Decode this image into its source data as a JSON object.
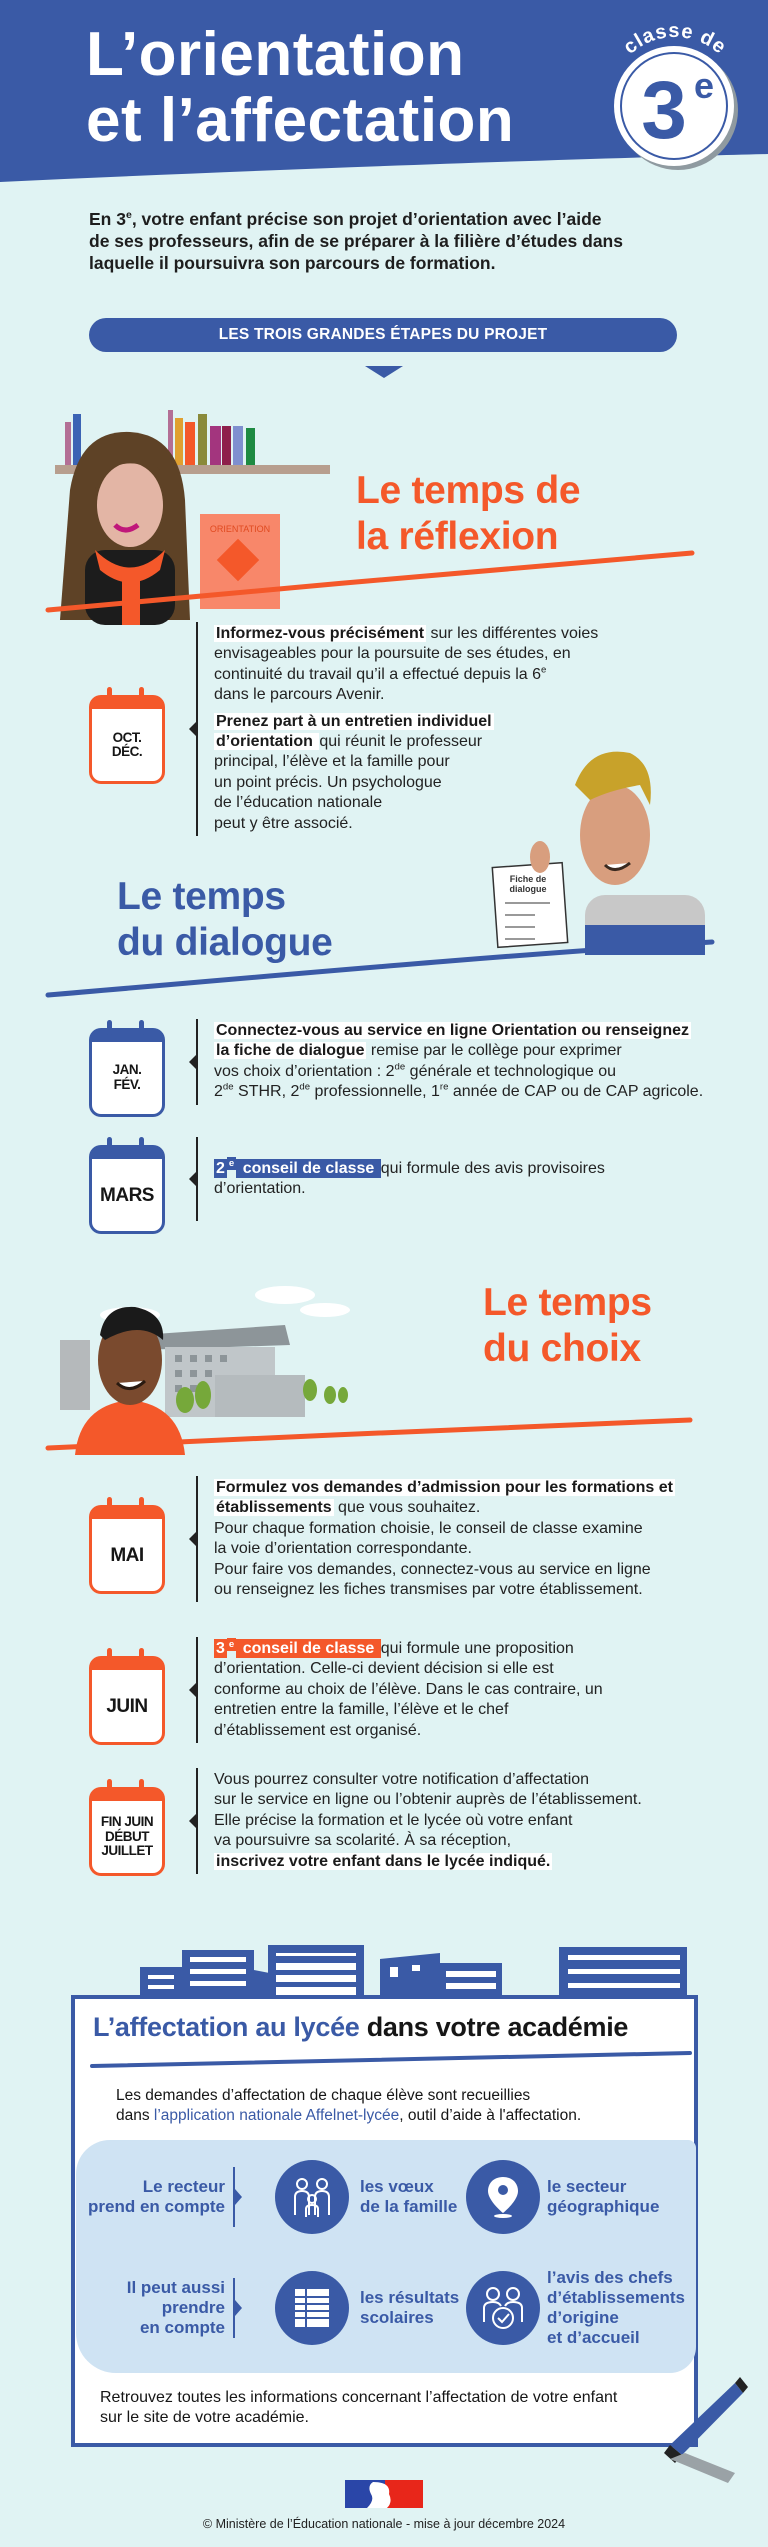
{
  "header": {
    "title_line1": "L’orientation",
    "title_line2": "et l’affectation",
    "badge_top": "classe de",
    "badge_number": "3",
    "badge_sup": "e"
  },
  "intro": {
    "pre": "En 3",
    "sup": "e",
    "text": ", votre enfant précise son projet d’orientation avec l’aide\nde ses professeurs, afin de se préparer à la filière d’études dans\nlaquelle il poursuivra son parcours de formation."
  },
  "steps_button": "LES TROIS GRANDES ÉTAPES DU PROJET",
  "sections": [
    {
      "title": "Le temps de\nla réflexion",
      "color": "#f4582a",
      "poster_label": "ORIENTATION"
    },
    {
      "title": "Le temps\ndu dialogue",
      "color": "#3a5aa6",
      "sheet_label": "Fiche de\ndialogue"
    },
    {
      "title": "Le temps\ndu choix",
      "color": "#f4582a"
    }
  ],
  "timeline": [
    {
      "date": "OCT.\nDÉC.",
      "color": "#f4582a",
      "paragraphs": [
        [
          {
            "t": "Informez-vous précisément",
            "s": "b"
          },
          {
            "t": " sur les différentes voies\nenvisageables pour la poursuite de ses études, en\ncontinuité du travail qu’il a effectué depuis la 6"
          },
          {
            "t": "e",
            "s": "sup"
          },
          {
            "t": "\ndans le parcours Avenir."
          }
        ],
        [
          {
            "t": "Prenez part à un entretien individuel\nd’orientation ",
            "s": "b"
          },
          {
            "t": " qui réunit le professeur\nprincipal, l’élève et la famille pour\nun point précis. Un psychologue\nde l’éducation nationale\npeut y être associé."
          }
        ]
      ]
    },
    {
      "date": "JAN.\nFÉV.",
      "color": "#3a5aa6",
      "paragraphs": [
        [
          {
            "t": "Connectez-vous au service en ligne Orientation ou renseignez\nla fiche de dialogue",
            "s": "b"
          },
          {
            "t": " remise par le collège pour exprimer\nvos choix d’orientation : 2"
          },
          {
            "t": "de",
            "s": "sup"
          },
          {
            "t": " générale et technologique ou\n2"
          },
          {
            "t": "de",
            "s": "sup"
          },
          {
            "t": " STHR, 2"
          },
          {
            "t": "de",
            "s": "sup"
          },
          {
            "t": " professionnelle, 1"
          },
          {
            "t": "re",
            "s": "sup"
          },
          {
            "t": " année de CAP ou de CAP agricole."
          }
        ]
      ]
    },
    {
      "date": "MARS",
      "color": "#3a5aa6",
      "paragraphs": [
        [
          {
            "t": "2",
            "s": "blue"
          },
          {
            "t": "e",
            "s": "bluesup"
          },
          {
            "t": " conseil de classe ",
            "s": "blue"
          },
          {
            "t": " qui formule des avis provisoires\nd’orientation."
          }
        ]
      ]
    },
    {
      "date": "MAI",
      "color": "#f4582a",
      "paragraphs": [
        [
          {
            "t": "Formulez vos demandes d’admission pour les formations et\nétablissements",
            "s": "b"
          },
          {
            "t": " que vous souhaitez.\nPour chaque formation choisie, le conseil de classe examine\nla voie d’orientation correspondante.\nPour faire vos demandes, connectez-vous au service en ligne\nou renseignez les fiches transmises par votre établissement."
          }
        ]
      ]
    },
    {
      "date": "JUIN",
      "color": "#f4582a",
      "paragraphs": [
        [
          {
            "t": "3",
            "s": "orange"
          },
          {
            "t": "e",
            "s": "orangesup"
          },
          {
            "t": " conseil de classe ",
            "s": "orange"
          },
          {
            "t": " qui formule une proposition\nd’orientation. Celle-ci devient décision si elle est\nconforme au choix de l’élève. Dans le cas contraire, un\nentretien entre la famille, l’élève et le chef\nd’établissement est organisé."
          }
        ]
      ]
    },
    {
      "date": "FIN JUIN\nDÉBUT\nJUILLET",
      "color": "#f4582a",
      "paragraphs": [
        [
          {
            "t": "Vous pourrez consulter votre notification d’affectation\nsur le service en ligne ou l’obtenir auprès de l’établissement.\nElle précise la formation et le lycée où votre enfant\nva poursuivre sa scolarité. À sa réception,\n"
          },
          {
            "t": "inscrivez votre enfant dans le lycée indiqué.",
            "s": "b"
          }
        ]
      ]
    }
  ],
  "affectation": {
    "title_blue": "L’affectation au lycée",
    "title_black": " dans votre académie",
    "desc": [
      {
        "t": "Les demandes d’affectation de chaque élève sont recueillies\ndans "
      },
      {
        "t": "l’application nationale Affelnet-lycée",
        "s": "link"
      },
      {
        "t": ", outil d’aide à l'affectation."
      }
    ],
    "rows": [
      {
        "label": "Le recteur\nprend en compte",
        "items": [
          {
            "icon": "family-icon",
            "text": "les vœux\nde la famille"
          },
          {
            "icon": "location-pin-icon",
            "text": "le secteur\ngéographique"
          }
        ]
      },
      {
        "label": "Il peut aussi\nprendre\nen compte",
        "items": [
          {
            "icon": "table-icon",
            "text": "les résultats\nscolaires"
          },
          {
            "icon": "people-check-icon",
            "text": "l’avis des chefs\nd’établissements\nd’origine\net d’accueil"
          }
        ]
      }
    ],
    "note": "Retrouvez toutes les informations concernant l’affectation de votre enfant\nsur le site de votre académie."
  },
  "footer": {
    "copyright": "© Ministère de l’Éducation nationale - mise à jour décembre 2024"
  },
  "colors": {
    "blue": "#3a5aa6",
    "orange": "#f4582a",
    "background": "#e0f3f3",
    "panel": "#cfe3f3"
  }
}
